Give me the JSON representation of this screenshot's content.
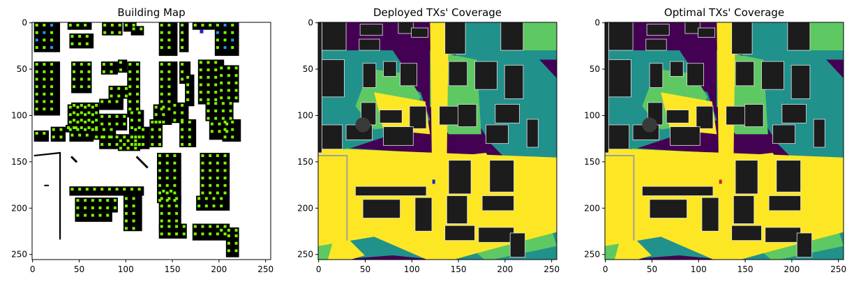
{
  "colors": {
    "background": "#ffffff",
    "building_fill": "#000000",
    "antenna_green": "#7cfc00",
    "antenna_blue": "#1e9be6",
    "coverage_low": "#440154",
    "coverage_mid": "#21918c",
    "coverage_high": "#5ec962",
    "coverage_max": "#fde725",
    "coverage_building": "#1c1c1c",
    "deployed_tx": "#1f1fd0",
    "optimal_tx": "#d02020"
  },
  "chart_data": [
    {
      "type": "heatmap",
      "title": "Building Map",
      "xlim": [
        0,
        255
      ],
      "ylim": [
        255,
        0
      ],
      "xticks": [
        "0",
        "50",
        "100",
        "150",
        "200",
        "250"
      ],
      "yticks": [
        "0",
        "50",
        "100",
        "150",
        "200",
        "250"
      ],
      "grid": false
    },
    {
      "type": "heatmap",
      "title": "Deployed TXs' Coverage",
      "xlim": [
        0,
        255
      ],
      "ylim": [
        255,
        0
      ],
      "xticks": [
        "0",
        "50",
        "100",
        "150",
        "200",
        "250"
      ],
      "yticks": [
        "0",
        "50",
        "100",
        "150",
        "200",
        "250"
      ],
      "tx_point": [
        124,
        171
      ],
      "grid": false
    },
    {
      "type": "heatmap",
      "title": "Optimal TXs' Coverage",
      "xlim": [
        0,
        255
      ],
      "ylim": [
        255,
        0
      ],
      "xticks": [
        "0",
        "50",
        "100",
        "150",
        "200",
        "250"
      ],
      "yticks": [
        "0",
        "50",
        "100",
        "150",
        "200",
        "250"
      ],
      "tx_point": [
        124,
        171
      ],
      "grid": false
    }
  ]
}
